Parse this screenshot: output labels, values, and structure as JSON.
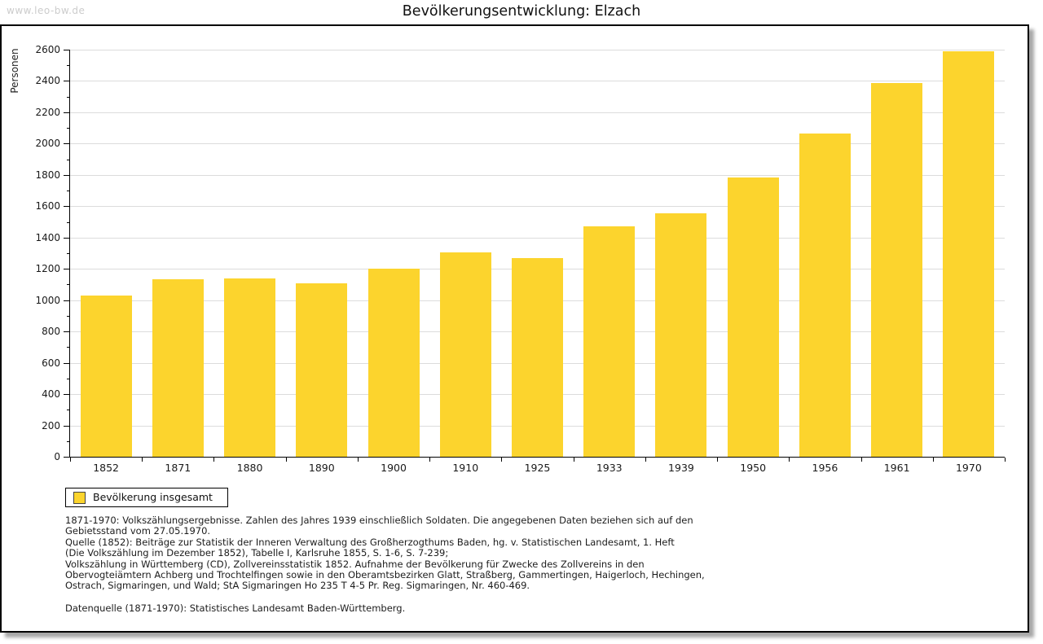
{
  "watermark": "www.leo-bw.de",
  "title": "Bevölkerungsentwicklung: Elzach",
  "legend": {
    "label": "Bevölkerung insgesamt",
    "swatch_color": "#FCD42D"
  },
  "colors": {
    "bar": "#FCD42D",
    "gridline": "#DCDCDC",
    "axis": "#000000",
    "watermark": "#CCCCCC",
    "frame_border": "#000000",
    "text": "#1A1A1A"
  },
  "chart_data": {
    "type": "bar",
    "title": "Bevölkerungsentwicklung: Elzach",
    "ylabel": "Personen",
    "xlabel": "",
    "series_name": "Bevölkerung insgesamt",
    "categories": [
      "1852",
      "1871",
      "1880",
      "1890",
      "1900",
      "1910",
      "1925",
      "1933",
      "1939",
      "1950",
      "1956",
      "1961",
      "1970"
    ],
    "values": [
      1030,
      1135,
      1140,
      1110,
      1200,
      1305,
      1270,
      1470,
      1555,
      1785,
      2065,
      2385,
      2590
    ],
    "ylim": [
      0,
      2600
    ],
    "yticks": [
      0,
      200,
      400,
      600,
      800,
      1000,
      1200,
      1400,
      1600,
      1800,
      2000,
      2200,
      2400,
      2600
    ],
    "ytick_minor_step": 100,
    "grid": "horizontal",
    "legend_position": "bottom-left",
    "bar_color": "#FCD42D"
  },
  "footnotes": {
    "lines": [
      "1871-1970: Volkszählungsergebnisse. Zahlen des Jahres 1939 einschließlich Soldaten. Die angegebenen Daten beziehen sich auf den",
      "Gebietsstand vom 27.05.1970.",
      "Quelle (1852): Beiträge zur Statistik der Inneren Verwaltung des Großherzogthums Baden, hg. v. Statistischen Landesamt, 1. Heft",
      "(Die Volkszählung im Dezember 1852), Tabelle I, Karlsruhe 1855, S. 1-6, S. 7-239;",
      "Volkszählung in Württemberg (CD), Zollvereinsstatistik 1852. Aufnahme der Bevölkerung für Zwecke des Zollvereins in den",
      "Obervogteiämtern Achberg und Trochtelfingen sowie in den Oberamtsbezirken Glatt, Straßberg, Gammertingen, Haigerloch, Hechingen,",
      "Ostrach, Sigmaringen, und Wald; StA Sigmaringen Ho 235 T 4-5 Pr. Reg. Sigmaringen, Nr. 460-469."
    ]
  },
  "source_line": "Datenquelle (1871-1970): Statistisches Landesamt Baden-Württemberg."
}
